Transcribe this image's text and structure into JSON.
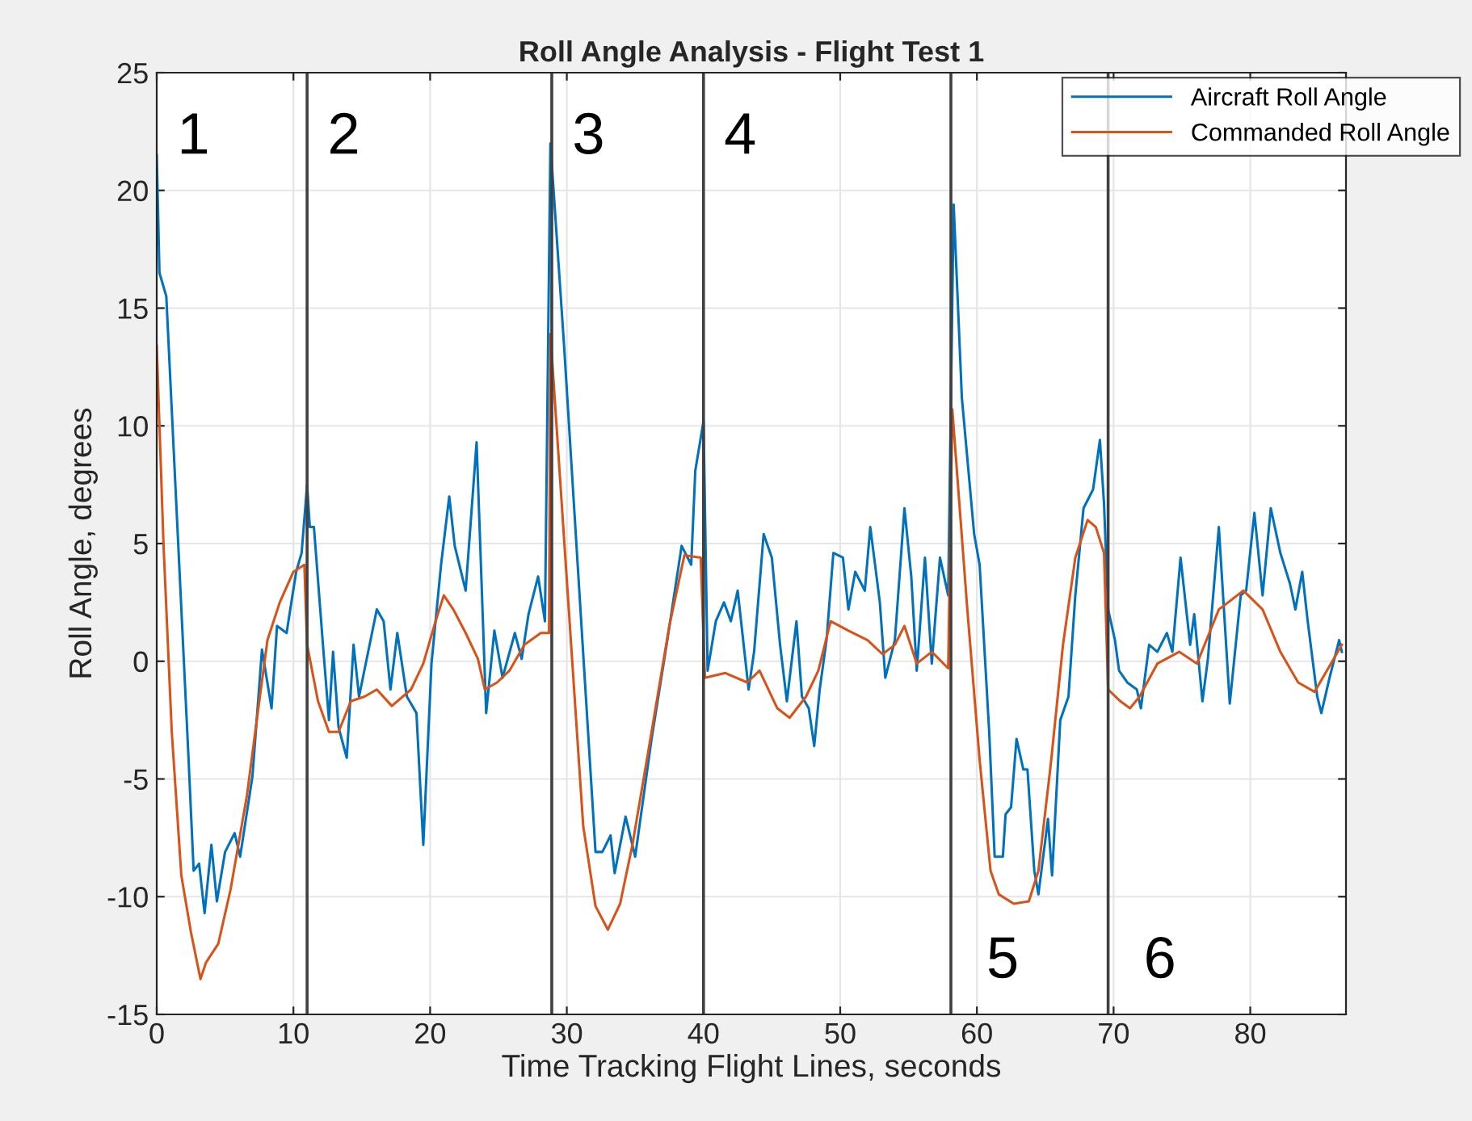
{
  "chart_data": {
    "type": "line",
    "title": "Roll Angle Analysis - Flight Test 1",
    "xlabel": "Time Tracking Flight Lines, seconds",
    "ylabel": "Roll Angle, degrees",
    "xlim": [
      0,
      87
    ],
    "xticks": [
      0,
      10,
      20,
      30,
      40,
      50,
      60,
      70,
      80
    ],
    "ylim": [
      -15,
      25
    ],
    "yticks": [
      -15,
      -10,
      -5,
      0,
      5,
      10,
      15,
      20,
      25
    ],
    "grid": true,
    "legend": "top right",
    "series": [
      {
        "name": "Aircraft Roll Angle",
        "color": "#0072bd",
        "x": [
          0,
          0.2,
          0.7,
          2.3,
          2.7,
          3.1,
          3.5,
          4.0,
          4.4,
          5.0,
          5.7,
          6.1,
          7.0,
          7.7,
          8.4,
          8.8,
          9.5,
          10.2,
          10.6,
          11.0,
          11.2,
          11.5,
          12.2,
          12.6,
          12.9,
          13.3,
          13.9,
          14.4,
          14.8,
          16.1,
          16.6,
          17.1,
          17.6,
          18.3,
          19.0,
          19.5,
          20.1,
          20.8,
          21.4,
          21.8,
          22.6,
          23.4,
          24.1,
          24.7,
          25.3,
          26.2,
          26.7,
          27.2,
          27.9,
          28.4,
          28.8,
          29.8,
          32.1,
          32.6,
          33.2,
          33.5,
          34.3,
          35.0,
          36.2,
          37.3,
          38.4,
          39.1,
          39.4,
          40.0,
          40.3,
          40.9,
          41.5,
          42.0,
          42.5,
          43.3,
          43.7,
          44.4,
          45.0,
          45.6,
          46.1,
          46.8,
          47.2,
          47.7,
          48.1,
          48.5,
          49.0,
          49.5,
          50.2,
          50.6,
          51.1,
          51.8,
          52.2,
          52.9,
          53.3,
          54.0,
          54.7,
          55.2,
          55.6,
          56.2,
          56.7,
          57.3,
          57.9,
          58.3,
          58.9,
          59.8,
          60.2,
          60.9,
          61.3,
          61.9,
          62.1,
          62.5,
          62.9,
          63.4,
          63.7,
          64.2,
          64.5,
          65.2,
          65.5,
          66.1,
          66.7,
          67.2,
          67.8,
          68.5,
          69.0,
          69.3,
          69.6,
          70.1,
          70.4,
          71.0,
          71.7,
          72.0,
          72.6,
          73.2,
          73.9,
          74.3,
          74.9,
          75.6,
          75.9,
          76.5,
          76.9,
          77.7,
          78.5,
          79.3,
          79.7,
          80.3,
          80.9,
          81.5,
          82.2,
          82.9,
          83.3,
          83.8,
          84.2,
          84.9,
          85.2,
          85.8,
          86.5,
          86.7
        ],
        "values": [
          21.5,
          16.5,
          15.5,
          -3.8,
          -8.9,
          -8.6,
          -10.7,
          -7.8,
          -10.2,
          -8.1,
          -7.3,
          -8.3,
          -4.9,
          0.5,
          -2.0,
          1.5,
          1.2,
          3.8,
          4.6,
          7.5,
          5.7,
          5.7,
          0.4,
          -2.5,
          0.4,
          -2.8,
          -4.1,
          0.7,
          -1.5,
          2.2,
          1.7,
          -1.2,
          1.2,
          -1.5,
          -2.2,
          -7.8,
          -0.1,
          4.1,
          7.0,
          4.9,
          3.0,
          9.3,
          -2.2,
          1.3,
          -0.7,
          1.2,
          0.1,
          2.0,
          3.6,
          1.7,
          22.0,
          13.4,
          -8.1,
          -8.1,
          -7.4,
          -9.0,
          -6.6,
          -8.3,
          -3.3,
          0.7,
          4.9,
          4.1,
          8.1,
          10.2,
          -0.4,
          1.7,
          2.5,
          1.7,
          3.0,
          -1.2,
          0.4,
          5.4,
          4.4,
          0.7,
          -1.7,
          1.7,
          -1.5,
          -2.0,
          -3.6,
          -1.2,
          0.9,
          4.6,
          4.4,
          2.2,
          3.8,
          3.0,
          5.7,
          2.5,
          -0.7,
          0.9,
          6.5,
          3.6,
          -0.4,
          4.4,
          -0.1,
          4.4,
          2.8,
          19.4,
          11.2,
          5.4,
          4.1,
          -3.0,
          -8.3,
          -8.3,
          -6.5,
          -6.2,
          -3.3,
          -4.6,
          -4.6,
          -8.9,
          -9.9,
          -6.7,
          -9.1,
          -2.5,
          -1.5,
          2.8,
          6.5,
          7.3,
          9.4,
          6.7,
          2.2,
          0.9,
          -0.4,
          -0.9,
          -1.2,
          -2.0,
          0.7,
          0.4,
          1.2,
          0.4,
          4.4,
          0.7,
          2.0,
          -1.7,
          0.1,
          5.7,
          -1.8,
          2.8,
          3.0,
          6.3,
          2.8,
          6.5,
          4.6,
          3.3,
          2.2,
          3.8,
          1.7,
          -1.5,
          -2.2,
          -0.7,
          0.9,
          0.4
        ]
      },
      {
        "name": "Commanded Roll Angle",
        "color": "#d95319",
        "x": [
          0,
          0.5,
          1.1,
          1.8,
          2.5,
          3.2,
          3.6,
          4.5,
          5.4,
          6.6,
          7.5,
          8.1,
          9.0,
          10.0,
          10.8,
          11.0,
          11.8,
          12.6,
          13.3,
          14.2,
          15.2,
          16.1,
          17.2,
          18.6,
          19.5,
          20.4,
          21.0,
          21.7,
          22.6,
          23.5,
          24.0,
          24.9,
          25.8,
          26.9,
          28.1,
          28.7,
          28.8,
          31.2,
          32.1,
          33.0,
          33.9,
          34.8,
          36.2,
          37.5,
          38.6,
          39.8,
          40.1,
          41.6,
          43.2,
          44.1,
          45.4,
          46.3,
          47.5,
          48.4,
          49.3,
          50.6,
          52.0,
          53.1,
          54.0,
          54.7,
          55.6,
          56.7,
          57.9,
          58.2,
          59.3,
          60.2,
          61.0,
          61.6,
          62.7,
          63.8,
          64.5,
          65.4,
          66.3,
          67.2,
          68.1,
          68.7,
          69.3,
          69.6,
          70.5,
          71.2,
          71.9,
          73.2,
          74.8,
          76.1,
          77.7,
          79.5,
          80.9,
          82.2,
          83.5,
          84.7,
          85.6,
          86.7
        ],
        "values": [
          13.4,
          4.9,
          -3.0,
          -9.1,
          -11.5,
          -13.5,
          -12.8,
          -12.0,
          -9.7,
          -5.7,
          -1.7,
          0.9,
          2.5,
          3.8,
          4.1,
          0.7,
          -1.7,
          -3.0,
          -3.0,
          -1.7,
          -1.5,
          -1.2,
          -1.9,
          -1.2,
          -0.1,
          1.7,
          2.8,
          2.2,
          1.2,
          0.1,
          -1.2,
          -0.9,
          -0.4,
          0.7,
          1.2,
          1.2,
          13.9,
          -7.0,
          -10.4,
          -11.4,
          -10.3,
          -7.8,
          -3.0,
          1.5,
          4.5,
          4.4,
          -0.7,
          -0.5,
          -0.9,
          -0.4,
          -2.0,
          -2.4,
          -1.5,
          -0.4,
          1.7,
          1.3,
          0.9,
          0.3,
          0.7,
          1.5,
          -0.1,
          0.4,
          -0.3,
          10.7,
          2.2,
          -4.2,
          -8.9,
          -9.9,
          -10.3,
          -10.2,
          -8.9,
          -4.4,
          0.7,
          4.4,
          6.0,
          5.7,
          4.6,
          -1.2,
          -1.7,
          -2.0,
          -1.5,
          -0.1,
          0.4,
          -0.1,
          2.2,
          3.0,
          2.2,
          0.4,
          -0.9,
          -1.3,
          -0.4,
          0.7
        ]
      }
    ],
    "ref_lines": [
      {
        "axis": "x",
        "value": 11.0,
        "color": "#404040"
      },
      {
        "axis": "x",
        "value": 28.9,
        "color": "#404040"
      },
      {
        "axis": "x",
        "value": 40.0,
        "color": "#404040"
      },
      {
        "axis": "x",
        "value": 58.1,
        "color": "#404040"
      },
      {
        "axis": "x",
        "value": 69.6,
        "color": "#404040"
      }
    ],
    "annotations": [
      "1",
      "2",
      "3",
      "4",
      "5",
      "6"
    ]
  }
}
